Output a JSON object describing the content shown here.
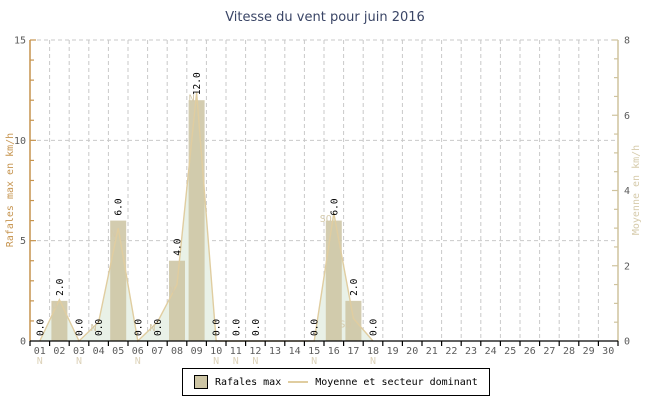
{
  "title": "Vitesse du vent pour juin 2016",
  "legend": {
    "rafales_label": "Rafales max",
    "moyenne_label": "Moyenne et secteur dominant"
  },
  "chart_data": {
    "type": "bar",
    "title": "Vitesse du vent pour juin 2016",
    "categories": [
      "01",
      "02",
      "03",
      "04",
      "05",
      "06",
      "07",
      "08",
      "09",
      "10",
      "11",
      "12",
      "13",
      "14",
      "15",
      "16",
      "17",
      "18",
      "19",
      "20",
      "21",
      "22",
      "23",
      "24",
      "25",
      "26",
      "27",
      "28",
      "29",
      "30"
    ],
    "series": [
      {
        "name": "Rafales max",
        "type": "bar",
        "axis": "left",
        "values": [
          0.0,
          2.0,
          0.0,
          0.0,
          6.0,
          0.0,
          0.0,
          4.0,
          12.0,
          0.0,
          0.0,
          0.0,
          null,
          null,
          0.0,
          6.0,
          2.0,
          0.0,
          null,
          null,
          null,
          null,
          null,
          null,
          null,
          null,
          null,
          null,
          null,
          null
        ]
      },
      {
        "name": "Moyenne et secteur dominant",
        "type": "area-line",
        "axis": "right",
        "values": [
          0,
          1.1,
          0,
          0.5,
          3.0,
          0,
          0.5,
          1.5,
          6.6,
          0,
          0,
          0,
          null,
          null,
          0,
          3.4,
          0.6,
          0,
          null,
          null,
          null,
          null,
          null,
          null,
          null,
          null,
          null,
          null,
          null,
          null
        ]
      }
    ],
    "sectors": [
      "N",
      "O",
      "N",
      "N",
      "N",
      "N",
      "N",
      "N",
      "N",
      "N",
      "N",
      "N",
      null,
      null,
      "N",
      "SO",
      "SO",
      "N",
      null,
      null,
      null,
      null,
      null,
      null,
      null,
      null,
      null,
      null,
      null,
      null
    ],
    "left_axis": {
      "label": "Rafales max en km/h",
      "min": 0,
      "max": 15,
      "major_ticks": [
        0,
        5,
        10,
        15
      ],
      "minor_step": 1
    },
    "right_axis": {
      "label": "Moyenne en km/h",
      "min": 0,
      "max": 8,
      "major_ticks": [
        0,
        2,
        4,
        6,
        8
      ],
      "minor_step": 0.5
    },
    "x_axis": {
      "label": "",
      "grid": true
    },
    "colors": {
      "title_text": "#3a4566",
      "bar_fill": "#cdc5a4",
      "area_fill": "#e9f1e7",
      "mean_line": "#e0cda0",
      "left_axis": "#c6944f",
      "right_axis_line": "#cfc39e",
      "right_axis_label": "#d6cbab",
      "sector_label": "#d4c9a9",
      "below_axis_sector": "#ddd3ba",
      "tick_text": "#5a5a5a",
      "value_text": "#000000",
      "grid": "#c9c9c9",
      "x_axis_line": "#000000"
    }
  }
}
